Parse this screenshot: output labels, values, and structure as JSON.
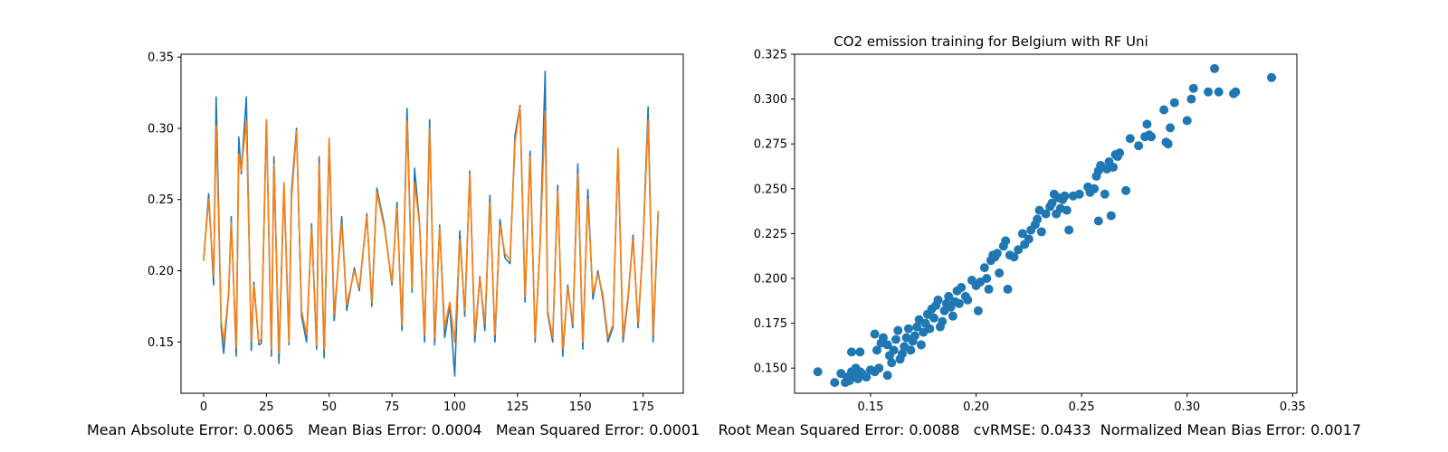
{
  "chart_data": [
    {
      "type": "line",
      "title": "",
      "xlabel": "",
      "ylabel": "",
      "xlim": [
        -9,
        191
      ],
      "ylim": [
        0.114,
        0.352
      ],
      "xticks": [
        0,
        25,
        50,
        75,
        100,
        125,
        150,
        175
      ],
      "yticks": [
        0.15,
        0.2,
        0.25,
        0.3,
        0.35
      ],
      "grid": false,
      "series": [
        {
          "color": "#1f77b4",
          "x": [
            0,
            2,
            4,
            5,
            7,
            8,
            10,
            11,
            13,
            14,
            15,
            17,
            19,
            20,
            22,
            23,
            25,
            27,
            28,
            30,
            32,
            34,
            35,
            37,
            39,
            41,
            43,
            45,
            46,
            48,
            50,
            52,
            55,
            57,
            60,
            62,
            65,
            67,
            69,
            72,
            75,
            77,
            79,
            81,
            83,
            84,
            86,
            88,
            90,
            92,
            94,
            96,
            98,
            100,
            102,
            104,
            106,
            108,
            110,
            112,
            114,
            116,
            118,
            120,
            122,
            124,
            126,
            128,
            130,
            132,
            134,
            136,
            137,
            139,
            141,
            143,
            145,
            147,
            149,
            151,
            153,
            155,
            157,
            159,
            161,
            163,
            165,
            167,
            169,
            171,
            173,
            175,
            177,
            179,
            181
          ],
          "values": [
            0.207,
            0.254,
            0.19,
            0.322,
            0.16,
            0.142,
            0.185,
            0.238,
            0.14,
            0.294,
            0.268,
            0.322,
            0.144,
            0.192,
            0.148,
            0.149,
            0.306,
            0.14,
            0.28,
            0.135,
            0.26,
            0.148,
            0.256,
            0.3,
            0.168,
            0.15,
            0.233,
            0.145,
            0.28,
            0.139,
            0.292,
            0.165,
            0.238,
            0.172,
            0.202,
            0.186,
            0.24,
            0.175,
            0.258,
            0.232,
            0.19,
            0.248,
            0.158,
            0.314,
            0.185,
            0.272,
            0.233,
            0.15,
            0.306,
            0.148,
            0.232,
            0.153,
            0.176,
            0.126,
            0.228,
            0.168,
            0.27,
            0.15,
            0.196,
            0.158,
            0.253,
            0.15,
            0.236,
            0.209,
            0.205,
            0.295,
            0.316,
            0.178,
            0.284,
            0.15,
            0.22,
            0.34,
            0.17,
            0.15,
            0.26,
            0.14,
            0.19,
            0.16,
            0.275,
            0.145,
            0.257,
            0.18,
            0.2,
            0.18,
            0.15,
            0.16,
            0.284,
            0.15,
            0.18,
            0.225,
            0.16,
            0.22,
            0.315,
            0.15,
            0.24
          ],
          "name": ""
        },
        {
          "color": "#ff7f0e",
          "x": [
            0,
            2,
            4,
            5,
            7,
            8,
            10,
            11,
            13,
            14,
            15,
            17,
            19,
            20,
            22,
            23,
            25,
            27,
            28,
            30,
            32,
            34,
            35,
            37,
            39,
            41,
            43,
            45,
            46,
            48,
            50,
            52,
            55,
            57,
            60,
            62,
            65,
            67,
            69,
            72,
            75,
            77,
            79,
            81,
            83,
            84,
            86,
            88,
            90,
            92,
            94,
            96,
            98,
            100,
            102,
            104,
            106,
            108,
            110,
            112,
            114,
            116,
            118,
            120,
            122,
            124,
            126,
            128,
            130,
            132,
            134,
            136,
            137,
            139,
            141,
            143,
            145,
            147,
            149,
            151,
            153,
            155,
            157,
            159,
            161,
            163,
            165,
            167,
            169,
            171,
            173,
            175,
            177,
            179,
            181
          ],
          "values": [
            0.207,
            0.25,
            0.196,
            0.302,
            0.165,
            0.15,
            0.185,
            0.234,
            0.146,
            0.282,
            0.27,
            0.305,
            0.15,
            0.19,
            0.15,
            0.152,
            0.306,
            0.145,
            0.275,
            0.142,
            0.262,
            0.15,
            0.25,
            0.298,
            0.172,
            0.155,
            0.23,
            0.148,
            0.275,
            0.145,
            0.293,
            0.17,
            0.233,
            0.176,
            0.2,
            0.188,
            0.238,
            0.178,
            0.255,
            0.23,
            0.192,
            0.244,
            0.162,
            0.305,
            0.188,
            0.262,
            0.232,
            0.155,
            0.3,
            0.153,
            0.23,
            0.16,
            0.178,
            0.15,
            0.222,
            0.172,
            0.268,
            0.155,
            0.195,
            0.163,
            0.248,
            0.155,
            0.232,
            0.212,
            0.208,
            0.29,
            0.315,
            0.182,
            0.28,
            0.153,
            0.218,
            0.312,
            0.172,
            0.153,
            0.256,
            0.145,
            0.188,
            0.163,
            0.268,
            0.15,
            0.25,
            0.184,
            0.198,
            0.183,
            0.153,
            0.162,
            0.286,
            0.154,
            0.182,
            0.222,
            0.163,
            0.218,
            0.306,
            0.155,
            0.242
          ],
          "name": ""
        }
      ]
    },
    {
      "type": "scatter",
      "title": "CO2 emission training for Belgium with RF Uni",
      "xlabel": "",
      "ylabel": "",
      "xlim": [
        0.114,
        0.352
      ],
      "ylim": [
        0.136,
        0.325
      ],
      "xticks": [
        0.15,
        0.2,
        0.25,
        0.3,
        0.35
      ],
      "yticks": [
        0.15,
        0.175,
        0.2,
        0.225,
        0.25,
        0.275,
        0.3,
        0.325
      ],
      "grid": false,
      "color": "#1f77b4",
      "points": [
        [
          0.125,
          0.148
        ],
        [
          0.133,
          0.142
        ],
        [
          0.136,
          0.147
        ],
        [
          0.138,
          0.142
        ],
        [
          0.139,
          0.145
        ],
        [
          0.14,
          0.143
        ],
        [
          0.141,
          0.148
        ],
        [
          0.142,
          0.146
        ],
        [
          0.143,
          0.15
        ],
        [
          0.144,
          0.144
        ],
        [
          0.145,
          0.148
        ],
        [
          0.146,
          0.147
        ],
        [
          0.148,
          0.145
        ],
        [
          0.15,
          0.149
        ],
        [
          0.152,
          0.148
        ],
        [
          0.154,
          0.15
        ],
        [
          0.141,
          0.159
        ],
        [
          0.145,
          0.159
        ],
        [
          0.153,
          0.16
        ],
        [
          0.155,
          0.164
        ],
        [
          0.152,
          0.169
        ],
        [
          0.156,
          0.167
        ],
        [
          0.158,
          0.163
        ],
        [
          0.159,
          0.157
        ],
        [
          0.16,
          0.153
        ],
        [
          0.158,
          0.146
        ],
        [
          0.161,
          0.16
        ],
        [
          0.162,
          0.166
        ],
        [
          0.163,
          0.171
        ],
        [
          0.164,
          0.155
        ],
        [
          0.165,
          0.158
        ],
        [
          0.166,
          0.162
        ],
        [
          0.167,
          0.167
        ],
        [
          0.168,
          0.172
        ],
        [
          0.169,
          0.16
        ],
        [
          0.17,
          0.165
        ],
        [
          0.171,
          0.168
        ],
        [
          0.172,
          0.173
        ],
        [
          0.173,
          0.177
        ],
        [
          0.174,
          0.163
        ],
        [
          0.175,
          0.17
        ],
        [
          0.176,
          0.175
        ],
        [
          0.177,
          0.18
        ],
        [
          0.178,
          0.172
        ],
        [
          0.179,
          0.183
        ],
        [
          0.18,
          0.178
        ],
        [
          0.181,
          0.185
        ],
        [
          0.182,
          0.188
        ],
        [
          0.183,
          0.173
        ],
        [
          0.184,
          0.176
        ],
        [
          0.185,
          0.182
        ],
        [
          0.186,
          0.186
        ],
        [
          0.187,
          0.19
        ],
        [
          0.188,
          0.184
        ],
        [
          0.189,
          0.179
        ],
        [
          0.19,
          0.187
        ],
        [
          0.191,
          0.193
        ],
        [
          0.192,
          0.186
        ],
        [
          0.193,
          0.195
        ],
        [
          0.195,
          0.19
        ],
        [
          0.196,
          0.188
        ],
        [
          0.198,
          0.199
        ],
        [
          0.2,
          0.196
        ],
        [
          0.201,
          0.182
        ],
        [
          0.202,
          0.198
        ],
        [
          0.204,
          0.206
        ],
        [
          0.205,
          0.2
        ],
        [
          0.206,
          0.194
        ],
        [
          0.207,
          0.21
        ],
        [
          0.208,
          0.213
        ],
        [
          0.209,
          0.212
        ],
        [
          0.21,
          0.214
        ],
        [
          0.211,
          0.203
        ],
        [
          0.213,
          0.218
        ],
        [
          0.214,
          0.221
        ],
        [
          0.215,
          0.194
        ],
        [
          0.216,
          0.213
        ],
        [
          0.218,
          0.212
        ],
        [
          0.22,
          0.216
        ],
        [
          0.222,
          0.225
        ],
        [
          0.223,
          0.219
        ],
        [
          0.225,
          0.222
        ],
        [
          0.226,
          0.227
        ],
        [
          0.228,
          0.23
        ],
        [
          0.229,
          0.233
        ],
        [
          0.23,
          0.238
        ],
        [
          0.231,
          0.226
        ],
        [
          0.233,
          0.236
        ],
        [
          0.235,
          0.24
        ],
        [
          0.236,
          0.242
        ],
        [
          0.237,
          0.247
        ],
        [
          0.238,
          0.236
        ],
        [
          0.239,
          0.245
        ],
        [
          0.24,
          0.239
        ],
        [
          0.241,
          0.244
        ],
        [
          0.242,
          0.246
        ],
        [
          0.243,
          0.238
        ],
        [
          0.244,
          0.227
        ],
        [
          0.246,
          0.246
        ],
        [
          0.249,
          0.247
        ],
        [
          0.253,
          0.251
        ],
        [
          0.254,
          0.248
        ],
        [
          0.256,
          0.25
        ],
        [
          0.257,
          0.257
        ],
        [
          0.258,
          0.26
        ],
        [
          0.259,
          0.263
        ],
        [
          0.258,
          0.232
        ],
        [
          0.261,
          0.247
        ],
        [
          0.262,
          0.261
        ],
        [
          0.263,
          0.265
        ],
        [
          0.264,
          0.235
        ],
        [
          0.265,
          0.262
        ],
        [
          0.266,
          0.269
        ],
        [
          0.267,
          0.268
        ],
        [
          0.268,
          0.27
        ],
        [
          0.271,
          0.249
        ],
        [
          0.273,
          0.278
        ],
        [
          0.277,
          0.274
        ],
        [
          0.28,
          0.279
        ],
        [
          0.281,
          0.286
        ],
        [
          0.282,
          0.28
        ],
        [
          0.283,
          0.279
        ],
        [
          0.289,
          0.294
        ],
        [
          0.29,
          0.276
        ],
        [
          0.291,
          0.275
        ],
        [
          0.292,
          0.284
        ],
        [
          0.294,
          0.298
        ],
        [
          0.3,
          0.288
        ],
        [
          0.302,
          0.3
        ],
        [
          0.303,
          0.306
        ],
        [
          0.31,
          0.304
        ],
        [
          0.313,
          0.317
        ],
        [
          0.315,
          0.304
        ],
        [
          0.322,
          0.303
        ],
        [
          0.323,
          0.304
        ],
        [
          0.34,
          0.312
        ]
      ]
    }
  ],
  "metrics": {
    "text": "Mean Absolute Error: 0.0065   Mean Bias Error: 0.0004   Mean Squared Error: 0.0001    Root Mean Squared Error: 0.0088   cvRMSE: 0.0433  Normalized Mean Bias Error: 0.0017"
  }
}
